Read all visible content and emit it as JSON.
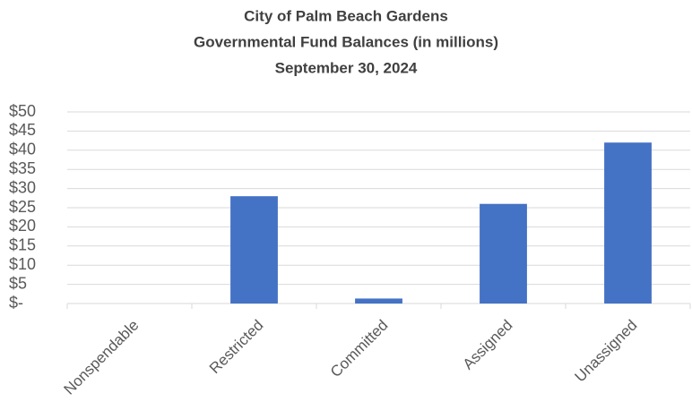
{
  "chart_data": {
    "type": "bar",
    "title": [
      "City of Palm Beach Gardens",
      "Governmental Fund Balances (in millions)",
      "September 30, 2024"
    ],
    "categories": [
      "Nonspendable",
      "Restricted",
      "Committed",
      "Assigned",
      "Unassigned"
    ],
    "values": [
      0,
      28,
      1.3,
      26,
      42
    ],
    "color": "#4472c4",
    "ylim": [
      0,
      50
    ],
    "yticks": [
      {
        "value": 0,
        "label": "$-"
      },
      {
        "value": 5,
        "label": "$5"
      },
      {
        "value": 10,
        "label": "$10"
      },
      {
        "value": 15,
        "label": "$15"
      },
      {
        "value": 20,
        "label": "$20"
      },
      {
        "value": 25,
        "label": "$25"
      },
      {
        "value": 30,
        "label": "$30"
      },
      {
        "value": 35,
        "label": "$35"
      },
      {
        "value": 40,
        "label": "$40"
      },
      {
        "value": 45,
        "label": "$45"
      },
      {
        "value": 50,
        "label": "$50"
      }
    ],
    "grid": true
  }
}
